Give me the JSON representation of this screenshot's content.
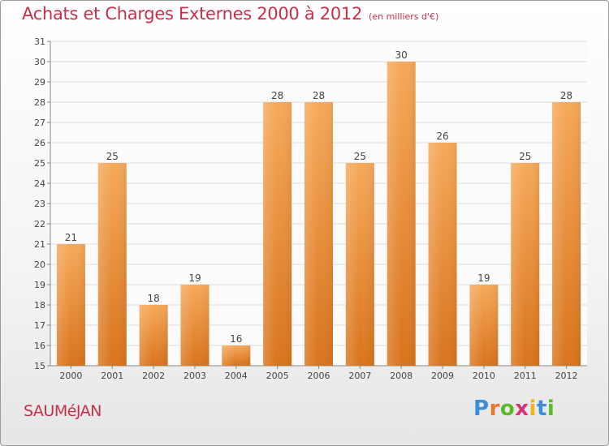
{
  "title": "Achats et Charges Externes 2000 à 2012",
  "subtitle": "(en milliers d'€)",
  "commune": "SAUMéJAN",
  "logo": {
    "letters": [
      "P",
      "r",
      "o",
      "x",
      "i",
      "t",
      "i"
    ],
    "colors": [
      "#3c8fd6",
      "#e8782c",
      "#5cb82c",
      "#d8327a",
      "#f0b419",
      "#3c8fd6",
      "#5cb82c"
    ]
  },
  "colors": {
    "bar_top": "#f6a95a",
    "bar_bottom": "#d9741c",
    "accent": "#c8304a",
    "grid": "#dcdcdc"
  },
  "chart_data": {
    "type": "bar",
    "categories": [
      "2000",
      "2001",
      "2002",
      "2003",
      "2004",
      "2005",
      "2006",
      "2007",
      "2008",
      "2009",
      "2010",
      "2011",
      "2012"
    ],
    "values": [
      21,
      25,
      18,
      19,
      16,
      28,
      28,
      25,
      30,
      26,
      19,
      25,
      28
    ],
    "ylim": [
      15,
      31
    ],
    "yticks": [
      15,
      16,
      17,
      18,
      19,
      20,
      21,
      22,
      23,
      24,
      25,
      26,
      27,
      28,
      29,
      30,
      31
    ],
    "grid": true
  }
}
